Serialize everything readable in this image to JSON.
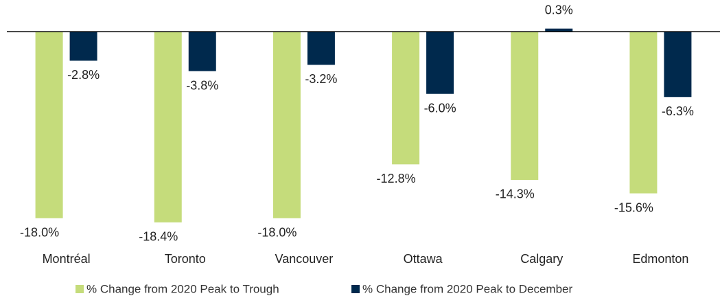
{
  "chart_data": {
    "type": "bar",
    "categories": [
      "Montréal",
      "Toronto",
      "Vancouver",
      "Ottawa",
      "Calgary",
      "Edmonton"
    ],
    "series": [
      {
        "name": "% Change from 2020 Peak to Trough",
        "color": "#c5dc7b",
        "values": [
          -18.0,
          -18.4,
          -18.0,
          -12.8,
          -14.3,
          -15.6
        ],
        "value_labels": [
          "-18.0%",
          "-18.4%",
          "-18.0%",
          "-12.8%",
          "-14.3%",
          "-15.6%"
        ]
      },
      {
        "name": "% Change from 2020 Peak to December",
        "color": "#00294d",
        "values": [
          -2.8,
          -3.8,
          -3.2,
          -6.0,
          0.3,
          -6.3
        ],
        "value_labels": [
          "-2.8%",
          "-3.8%",
          "-3.2%",
          "-6.0%",
          "0.3%",
          "-6.3%"
        ]
      }
    ],
    "ylim": [
      -20,
      2
    ],
    "legend": "bottom"
  }
}
